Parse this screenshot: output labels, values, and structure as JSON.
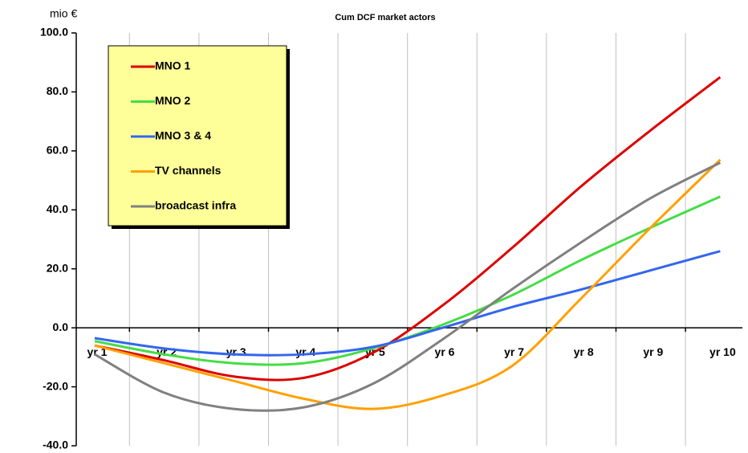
{
  "chart_data": {
    "type": "line",
    "title": "Cum DCF market actors",
    "y_axis_label": "mio €",
    "categories": [
      "yr 1",
      "yr 2",
      "yr 3",
      "yr 4",
      "yr 5",
      "yr 6",
      "yr 7",
      "yr 8",
      "yr 9",
      "yr 10"
    ],
    "series": [
      {
        "name": "MNO 1",
        "color": "#dd0000",
        "values": [
          -6,
          -11,
          -16.5,
          -17,
          -8.5,
          7.5,
          27,
          48,
          67,
          85
        ]
      },
      {
        "name": "MNO 2",
        "color": "#44dd44",
        "values": [
          -4.5,
          -9,
          -12,
          -12,
          -7,
          1,
          11,
          23,
          34,
          44.5
        ]
      },
      {
        "name": "MNO 3 & 4",
        "color": "#3366ee",
        "values": [
          -3.5,
          -7,
          -9,
          -9,
          -6.5,
          0,
          7,
          13,
          19.5,
          26
        ]
      },
      {
        "name": "TV channels",
        "color": "#ffa000",
        "values": [
          -6,
          -12,
          -18,
          -24,
          -27.5,
          -23,
          -13,
          10,
          34,
          57
        ]
      },
      {
        "name": "broadcast infra",
        "color": "#808080",
        "values": [
          -9,
          -22,
          -27.5,
          -27,
          -19,
          -4,
          13,
          29,
          44,
          56
        ]
      }
    ],
    "ylim": [
      -40,
      100
    ],
    "yticks": [
      {
        "value": -40,
        "label": "-40.0"
      },
      {
        "value": -20,
        "label": "-20.0"
      },
      {
        "value": 0,
        "label": "0.0"
      },
      {
        "value": 20,
        "label": "20.0"
      },
      {
        "value": 40,
        "label": "40.0"
      },
      {
        "value": 60,
        "label": "60.0"
      },
      {
        "value": 80,
        "label": "80.0"
      },
      {
        "value": 100,
        "label": "100.0"
      }
    ],
    "legend_position": "upper left",
    "legend_color": "#ffff99"
  }
}
